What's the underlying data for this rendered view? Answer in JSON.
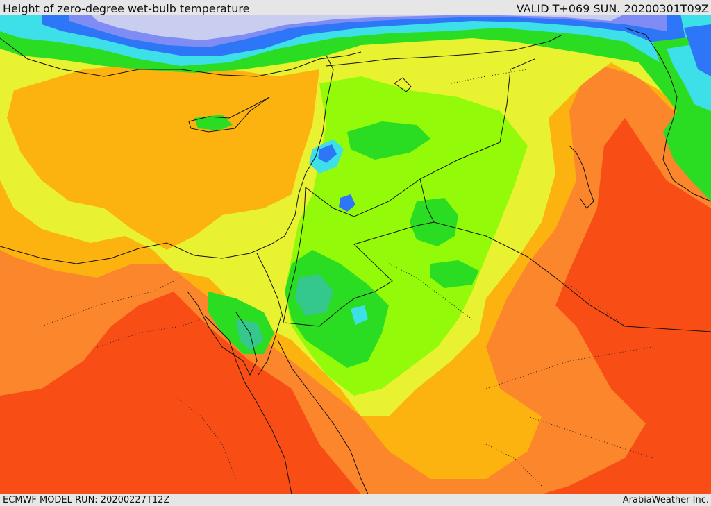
{
  "header": {
    "title": "Height of zero-degree wet-bulb temperature",
    "valid": "VALID T+069 SUN. 20200301T09Z"
  },
  "footer": {
    "model_run": "ECMWF MODEL RUN: 20200227T12Z",
    "credit": "ArabiaWeather Inc."
  },
  "palette": {
    "red": "#f84e16",
    "dark_orange": "#fb862c",
    "orange": "#fcb20f",
    "yellow": "#e8f230",
    "lime": "#93fb0a",
    "green": "#2add22",
    "teal": "#35c88c",
    "cyan": "#3de0e8",
    "blue": "#2e76f8",
    "periwinkle": "#7f8cf4",
    "lavender": "#c9cdf0",
    "border": "#111111"
  }
}
